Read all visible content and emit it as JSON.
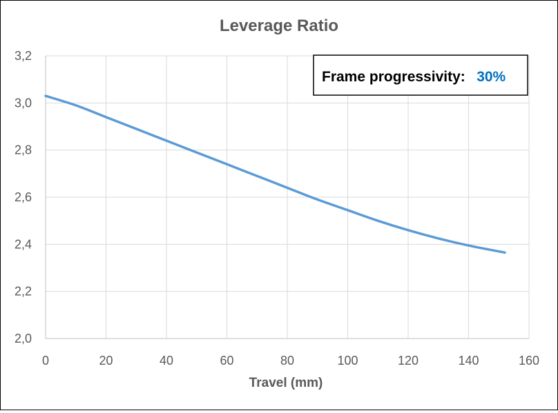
{
  "chart_data": {
    "type": "line",
    "title": "Leverage Ratio",
    "xlabel": "Travel (mm)",
    "ylabel": "",
    "xlim": [
      0,
      160
    ],
    "ylim": [
      2.0,
      3.2
    ],
    "xticks": [
      0,
      20,
      40,
      60,
      80,
      100,
      120,
      140,
      160
    ],
    "yticks": [
      2.0,
      2.2,
      2.4,
      2.6,
      2.8,
      3.0,
      3.2
    ],
    "xtick_labels": [
      "0",
      "20",
      "40",
      "60",
      "80",
      "100",
      "120",
      "140",
      "160"
    ],
    "ytick_labels": [
      "2,0",
      "2,2",
      "2,4",
      "2,6",
      "2,8",
      "3,0",
      "3,2"
    ],
    "grid": true,
    "legend": "none",
    "series": [
      {
        "color": "#5b9bd5",
        "x": [
          0,
          10,
          20,
          30,
          40,
          50,
          60,
          70,
          80,
          90,
          100,
          110,
          120,
          130,
          140,
          152
        ],
        "values": [
          3.03,
          2.99,
          2.94,
          2.89,
          2.84,
          2.79,
          2.74,
          2.69,
          2.64,
          2.59,
          2.545,
          2.5,
          2.46,
          2.425,
          2.395,
          2.365
        ]
      }
    ],
    "annotation": {
      "label": "Frame progressivity:",
      "value": "30%",
      "value_color": "#0070c0"
    }
  }
}
